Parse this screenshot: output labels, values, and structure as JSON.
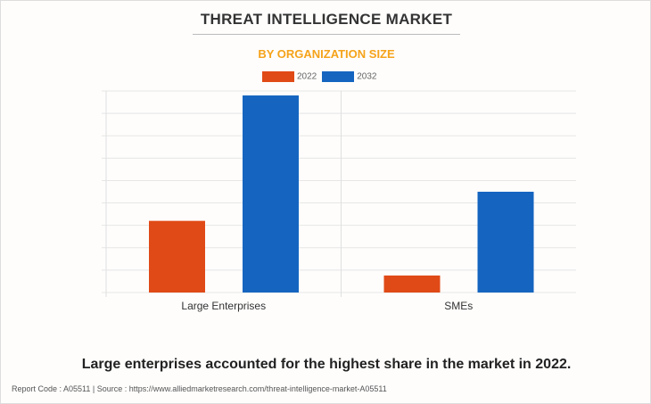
{
  "title": "THREAT INTELLIGENCE MARKET",
  "subtitle": "BY ORGANIZATION SIZE",
  "caption": "Large enterprises accounted for the highest share in the market in 2022.",
  "footer": "Report Code : A05511  |  Source : https://www.alliedmarketresearch.com/threat-intelligence-market-A05511",
  "chart_data": {
    "type": "bar",
    "categories": [
      "Large Enterprises",
      "SMEs"
    ],
    "series": [
      {
        "name": "2022",
        "color": "#e04a16",
        "values": [
          3.2,
          0.76
        ]
      },
      {
        "name": "2032",
        "color": "#1565c0",
        "values": [
          8.8,
          4.5
        ]
      }
    ],
    "ylim": [
      0,
      9
    ],
    "grid": true,
    "legend": "top"
  }
}
